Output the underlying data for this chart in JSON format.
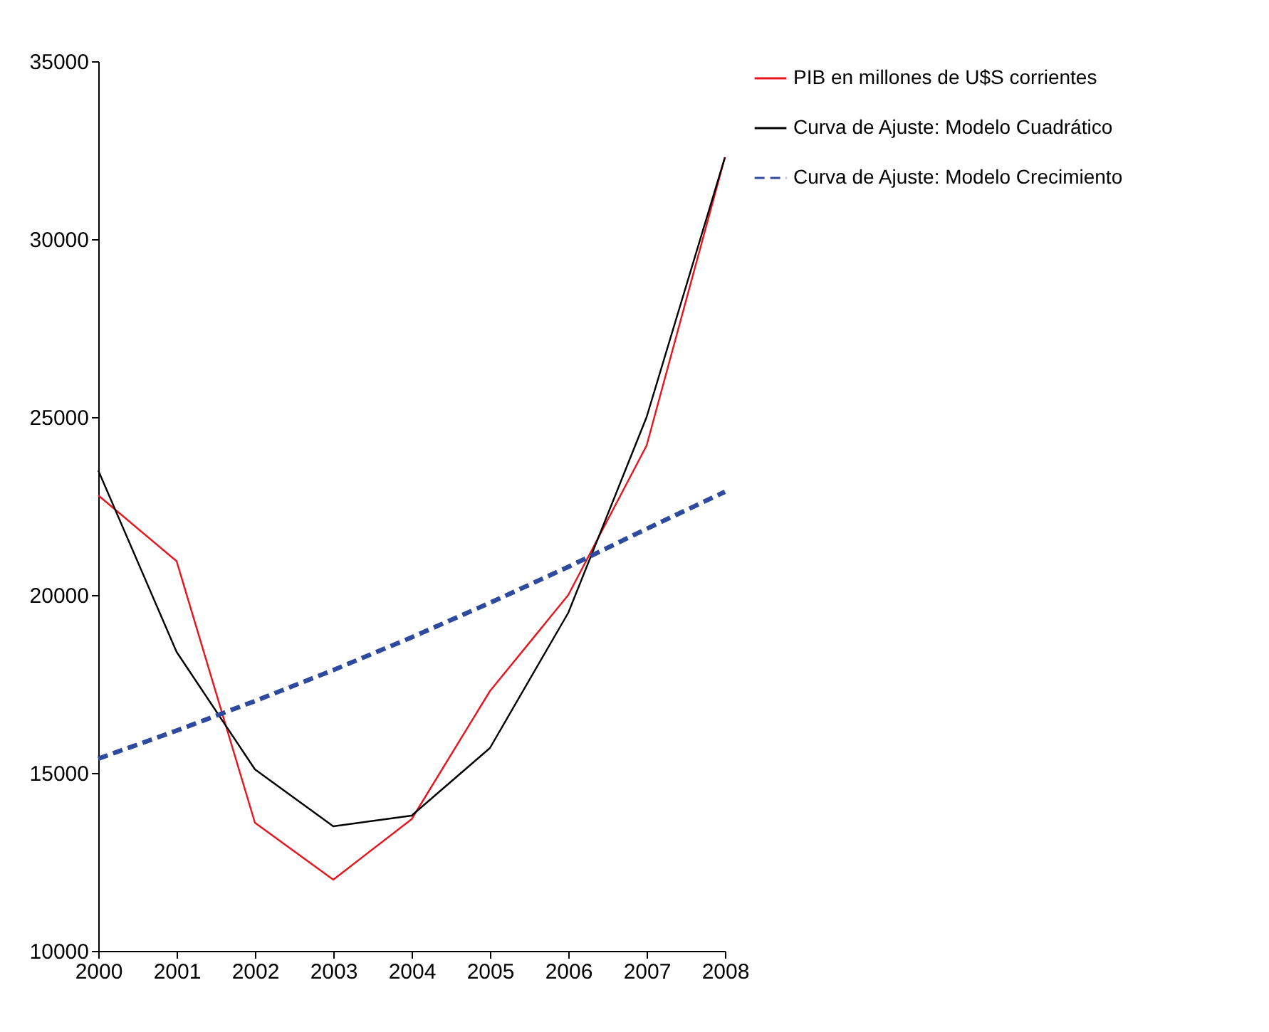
{
  "chart_data": {
    "type": "line",
    "x": [
      2000,
      2001,
      2002,
      2003,
      2004,
      2005,
      2006,
      2007,
      2008
    ],
    "xlim": [
      2000,
      2008
    ],
    "xticks": [
      2000,
      2001,
      2002,
      2003,
      2004,
      2005,
      2006,
      2007,
      2008
    ],
    "ylim": [
      10000,
      35000
    ],
    "yticks": [
      10000,
      15000,
      20000,
      25000,
      30000,
      35000
    ],
    "grid": false,
    "legend": "right",
    "marker": "none",
    "series": [
      {
        "name": "PIB en millones de U$S corrientes",
        "color": "#e8141e",
        "line_style": "solid",
        "values": [
          22800,
          20950,
          13600,
          12000,
          13700,
          17300,
          20000,
          24200,
          32300
        ]
      },
      {
        "name": "Curva de Ajuste: Modelo Cuadrático",
        "color": "#000000",
        "line_style": "solid",
        "values": [
          23500,
          18400,
          15100,
          13500,
          13800,
          15700,
          19500,
          25000,
          32300
        ]
      },
      {
        "name": "Curva de Ajuste: Modelo Crecimiento",
        "color": "#2e4a9e",
        "line_style": "dashed",
        "values": [
          15400,
          16190,
          17020,
          17890,
          18810,
          19780,
          20790,
          21860,
          22900
        ]
      }
    ]
  }
}
